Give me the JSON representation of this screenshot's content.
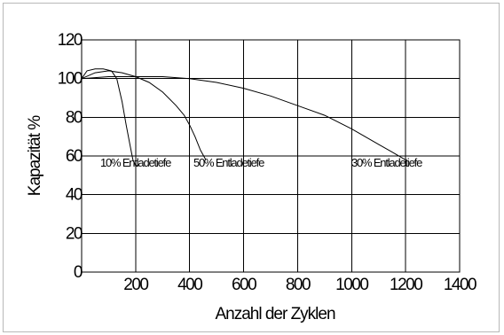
{
  "chart_data": {
    "type": "line",
    "title": "",
    "xlabel": "Anzahl der Zyklen",
    "ylabel": "Kapazität %",
    "xlim": [
      0,
      1400
    ],
    "ylim": [
      0,
      120
    ],
    "x_ticks": [
      "200",
      "400",
      "600",
      "800",
      "1000",
      "1200",
      "1400"
    ],
    "y_ticks": [
      "0",
      "20",
      "40",
      "60",
      "80",
      "100",
      "120"
    ],
    "grid": true,
    "legend": "none",
    "annotations": [
      "10% Entladetiefe",
      "50% Entladetiefe",
      "30% Entladetiefe"
    ],
    "series": [
      {
        "x": [
          0,
          20,
          50,
          80,
          110,
          130,
          150,
          165,
          180,
          190,
          200,
          210
        ],
        "y": [
          100,
          104,
          105,
          105,
          104,
          100,
          88,
          76,
          65,
          58,
          55,
          55
        ]
      },
      {
        "x": [
          0,
          50,
          100,
          150,
          200,
          250,
          300,
          350,
          380,
          400,
          420,
          440,
          460
        ],
        "y": [
          100,
          103,
          104,
          103,
          101,
          98,
          93,
          86,
          81,
          76,
          70,
          63,
          58
        ]
      },
      {
        "x": [
          0,
          100,
          200,
          300,
          400,
          500,
          600,
          700,
          800,
          900,
          1000,
          1050,
          1100,
          1150,
          1200
        ],
        "y": [
          100,
          101,
          101,
          101,
          100,
          98,
          95,
          91,
          86,
          81,
          74,
          70,
          66,
          62,
          58
        ]
      },
      {
        "x": [
          0,
          1120
        ],
        "y": [
          60,
          60
        ]
      }
    ]
  }
}
